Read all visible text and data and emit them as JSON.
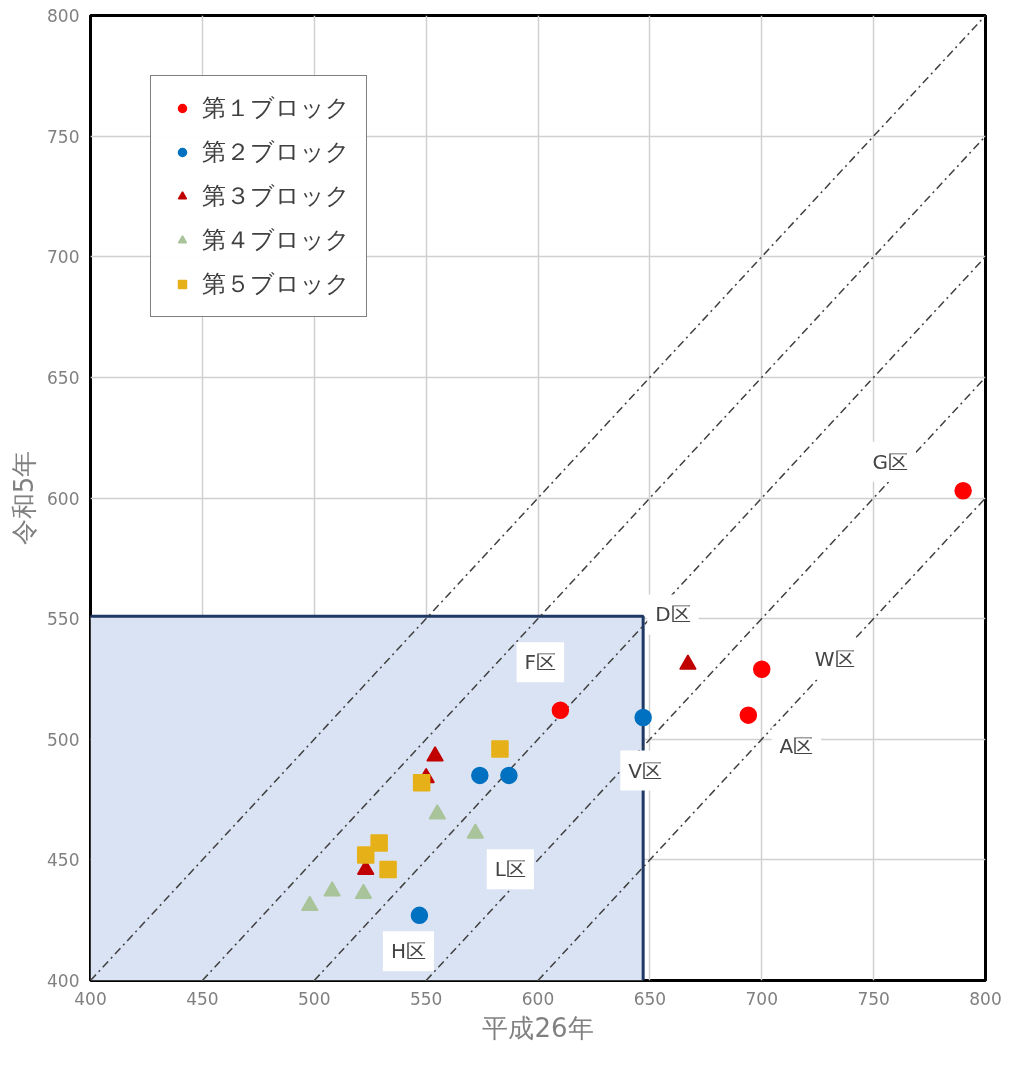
{
  "chart_data": {
    "type": "scatter",
    "xlabel": "平成26年",
    "ylabel": "令和5年",
    "xlim": [
      400,
      800
    ],
    "ylim": [
      400,
      800
    ],
    "xticks": [
      400,
      450,
      500,
      550,
      600,
      650,
      700,
      750,
      800
    ],
    "yticks": [
      400,
      450,
      500,
      550,
      600,
      650,
      700,
      750,
      800
    ],
    "grid": true,
    "legend": "top left",
    "series": [
      {
        "type": "area",
        "color": "#dae3f3",
        "x": [
          400,
          647
        ],
        "values": [
          551,
          551
        ]
      },
      {
        "type": "line",
        "color": "#404040",
        "line_style": "dotted",
        "x": [
          400,
          800
        ],
        "values": [
          400,
          800
        ]
      },
      {
        "type": "line",
        "color": "#404040",
        "line_style": "dotted",
        "x": [
          450,
          800
        ],
        "values": [
          400,
          750
        ]
      },
      {
        "type": "line",
        "color": "#404040",
        "line_style": "dotted",
        "x": [
          500,
          800
        ],
        "values": [
          400,
          700
        ]
      },
      {
        "type": "line",
        "color": "#404040",
        "line_style": "dotted",
        "x": [
          550,
          800
        ],
        "values": [
          400,
          650
        ]
      },
      {
        "type": "line",
        "color": "#404040",
        "line_style": "dotted",
        "x": [
          600,
          800
        ],
        "values": [
          400,
          600
        ]
      },
      {
        "name": "第１ブロック",
        "color": "#ff0000",
        "marker": "circle",
        "x": [
          610,
          700,
          694,
          790
        ],
        "values": [
          512,
          529,
          510,
          603
        ]
      },
      {
        "name": "第２ブロック",
        "color": "#0070c0",
        "marker": "circle",
        "x": [
          647,
          574,
          587,
          547
        ],
        "values": [
          509,
          485,
          485,
          427
        ]
      },
      {
        "name": "第３ブロック",
        "color": "#c00000",
        "marker": "triangle",
        "x": [
          667,
          554,
          550,
          523
        ],
        "values": [
          531,
          493,
          484,
          446
        ]
      },
      {
        "name": "第４ブロック",
        "color": "#a9c39a",
        "marker": "triangle",
        "x": [
          498,
          508,
          522,
          555,
          572
        ],
        "values": [
          431,
          437,
          436,
          469,
          461
        ]
      },
      {
        "name": "第５ブロック",
        "color": "#e6b019",
        "marker": "square",
        "x": [
          583,
          548,
          529,
          523,
          533
        ],
        "values": [
          496,
          482,
          457,
          452,
          446
        ]
      }
    ],
    "annotations": [
      {
        "text": "G区",
        "x": 790,
        "y": 603
      },
      {
        "text": "D区",
        "x": 667,
        "y": 531
      },
      {
        "text": "F区",
        "x": 610,
        "y": 512
      },
      {
        "text": "W区",
        "x": 700,
        "y": 529
      },
      {
        "text": "A区",
        "x": 694,
        "y": 510
      },
      {
        "text": "V区",
        "x": 647,
        "y": 509
      },
      {
        "text": "L区",
        "x": 572,
        "y": 461
      },
      {
        "text": "H区",
        "x": 547,
        "y": 427
      }
    ]
  }
}
